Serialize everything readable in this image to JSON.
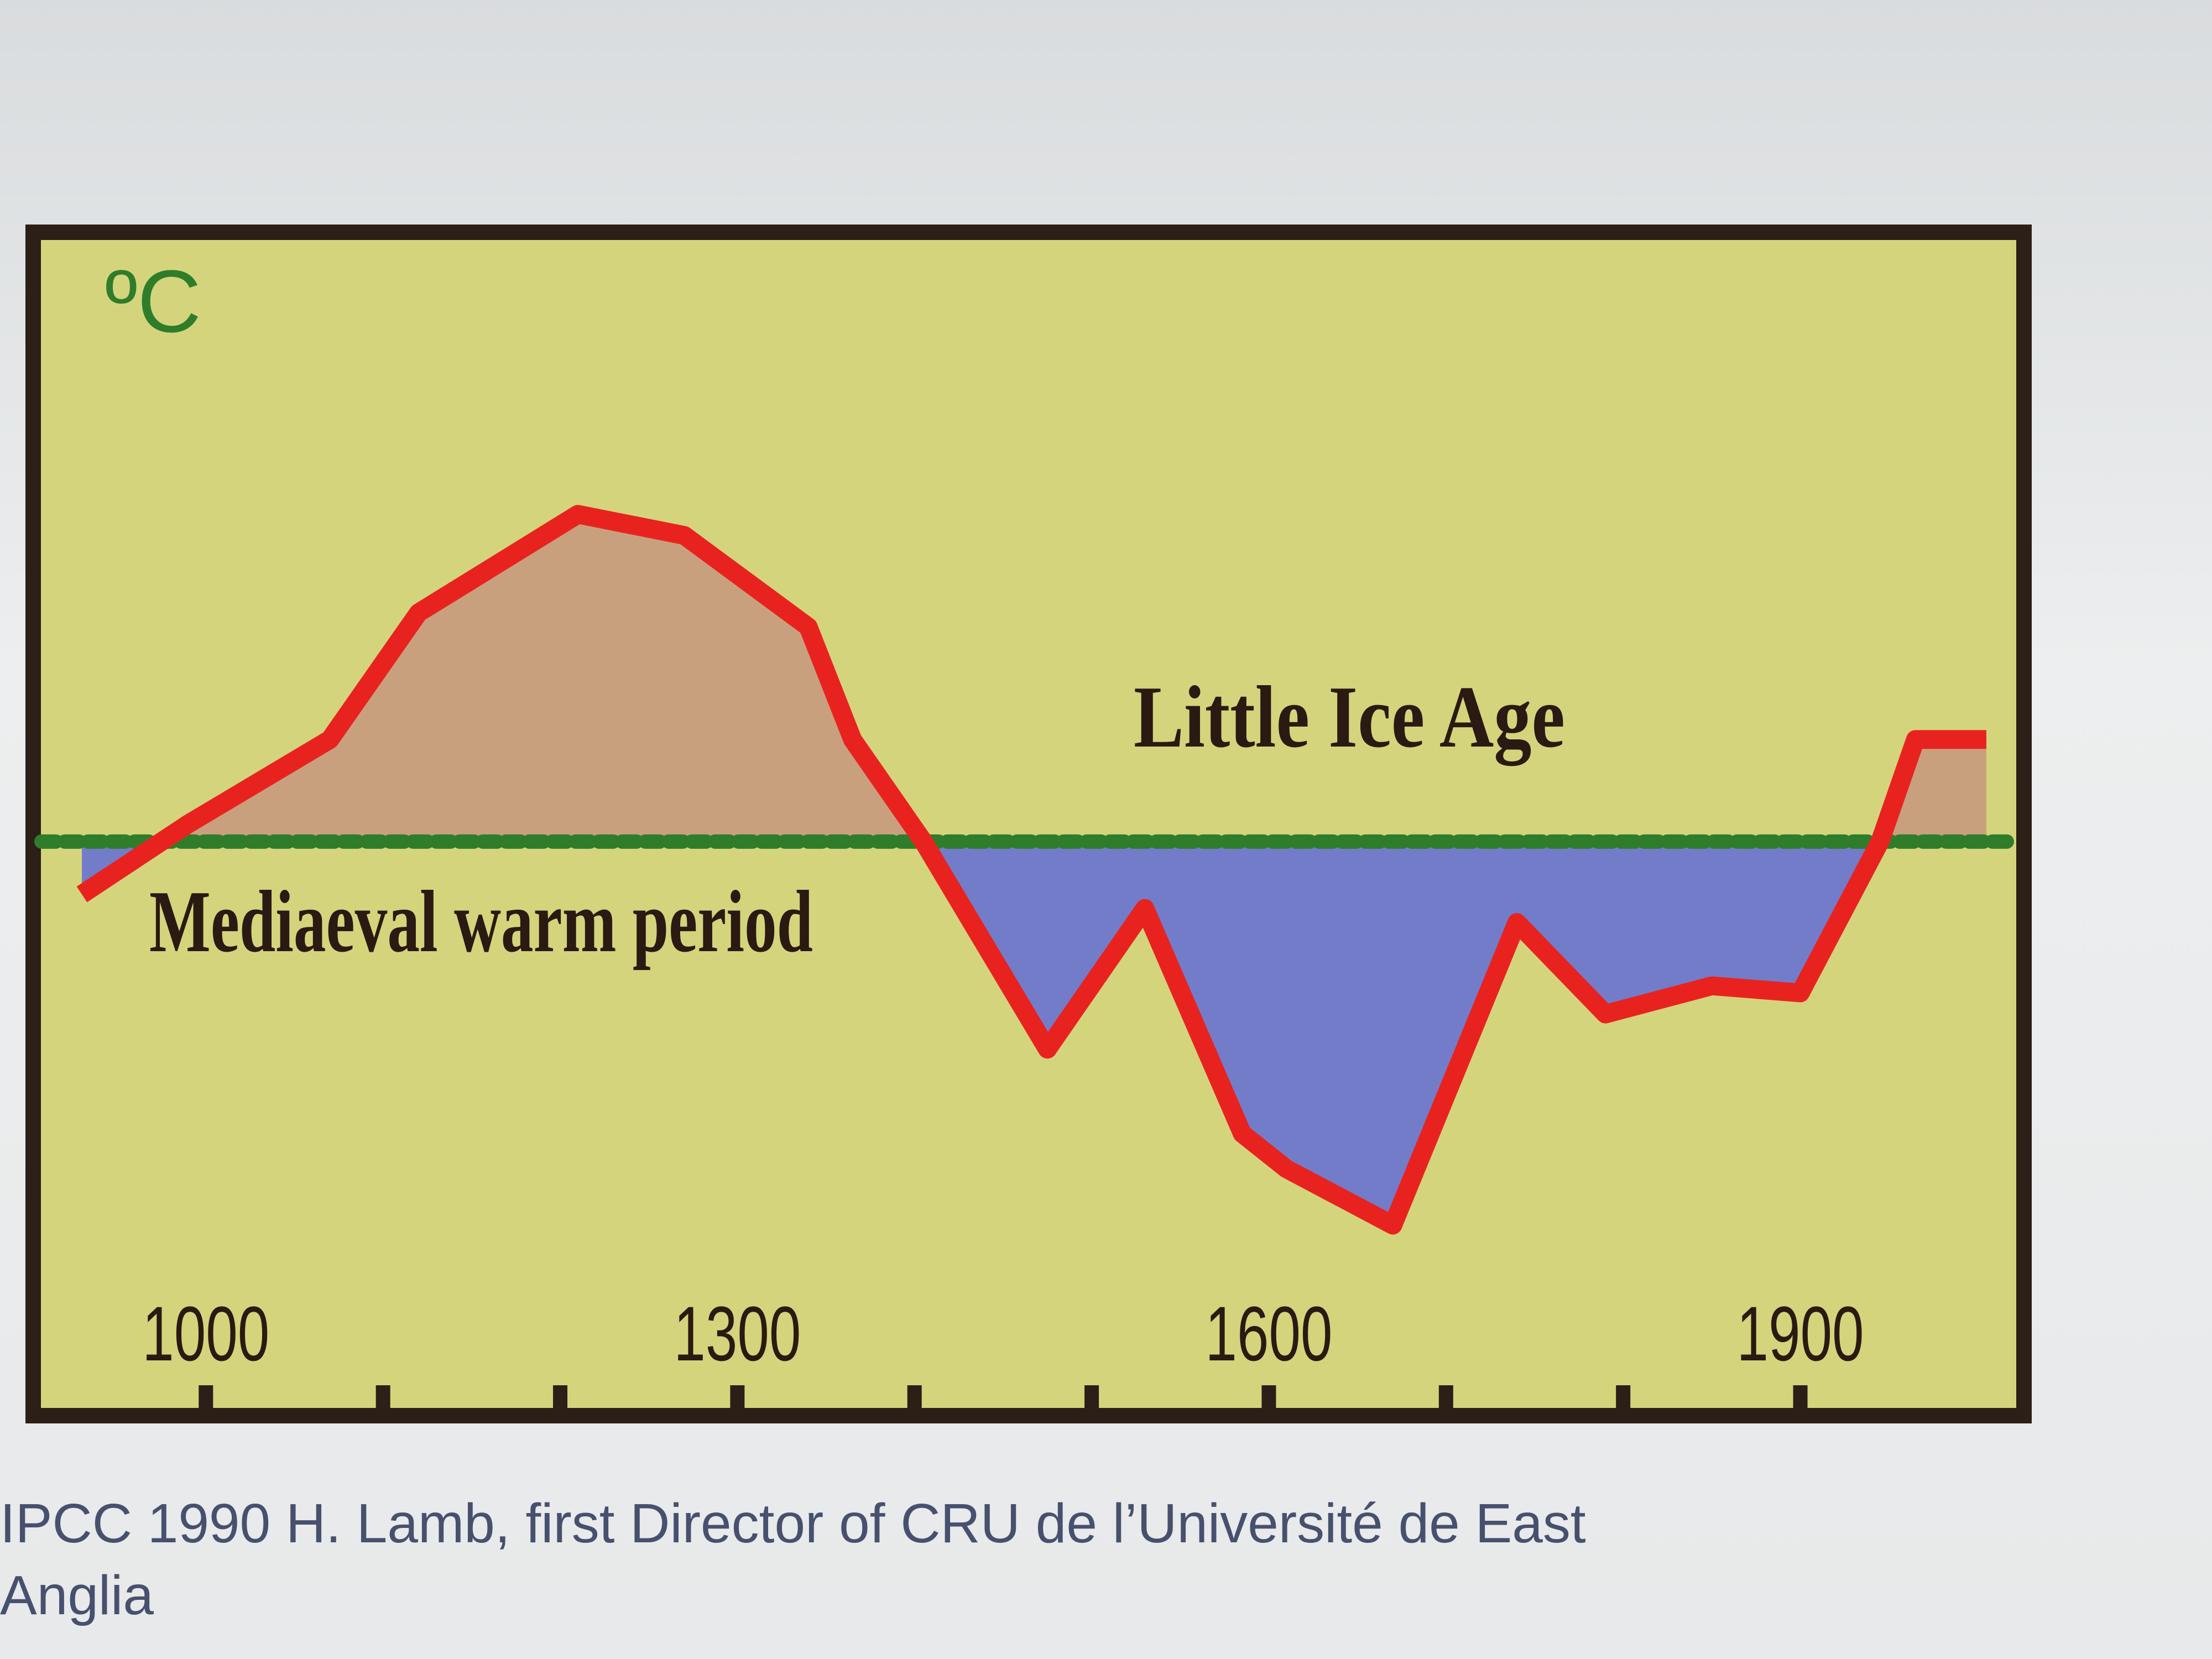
{
  "chart_data": {
    "type": "area",
    "y_label": "ºC",
    "annotations": [
      "Little Ice Age",
      "Mediaeval warm period"
    ],
    "caption": "IPCC 1990  H. Lamb, first Director of CRU de l’Université de East Anglia",
    "x": [
      930,
      990,
      1070,
      1120,
      1210,
      1270,
      1340,
      1365,
      1405,
      1475,
      1530,
      1585,
      1610,
      1670,
      1740,
      1790,
      1850,
      1900,
      1945,
      1965,
      2005
    ],
    "values": [
      -0.15,
      0.05,
      0.29,
      0.65,
      0.93,
      0.87,
      0.61,
      0.29,
      0,
      -0.59,
      -0.19,
      -0.83,
      -0.93,
      -1.09,
      -0.23,
      -0.49,
      -0.41,
      -0.43,
      0,
      0.29,
      0.29
    ],
    "color": "#e8231f",
    "fill_above": "#c9a07e",
    "fill_below": "#737cc9",
    "reference_line": 0,
    "reference_color": "#2f7d2a",
    "xlim": [
      915,
      2020
    ],
    "xticks": [
      1000,
      1300,
      1600,
      1900
    ],
    "xminorticks": [
      1100,
      1200,
      1400,
      1500,
      1700,
      1800
    ],
    "ylim": [
      -1.6,
      1.7
    ]
  }
}
